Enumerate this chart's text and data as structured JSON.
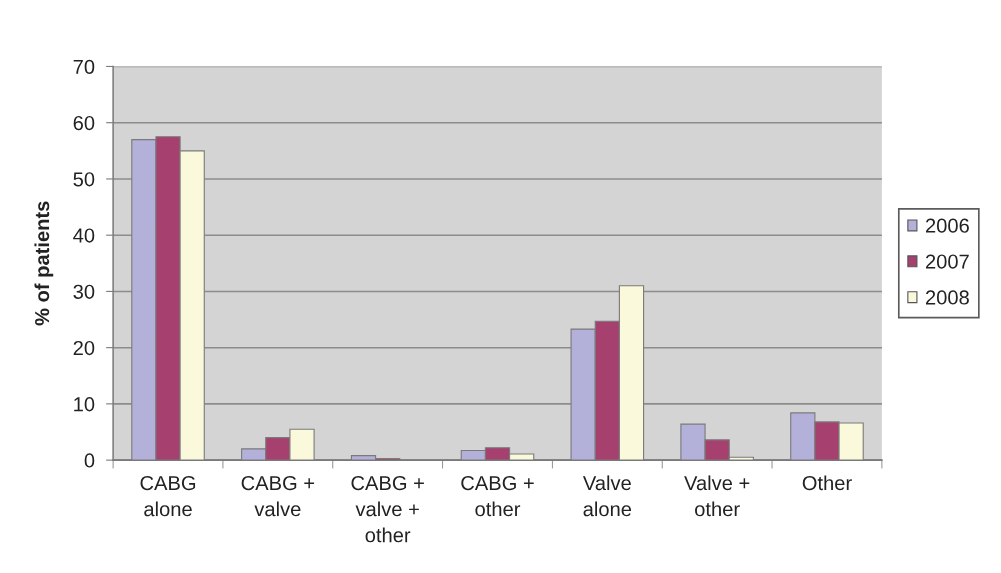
{
  "chart_data": {
    "type": "bar",
    "ylabel": "% of patients",
    "categories": [
      "CABG\nalone",
      "CABG +\nvalve",
      "CABG +\nvalve +\nother",
      "CABG +\nother",
      "Valve\nalone",
      "Valve +\nother",
      "Other"
    ],
    "series": [
      {
        "name": "2006",
        "color": "#b3b0d9",
        "values": [
          57,
          2,
          0.8,
          1.7,
          23.3,
          6.4,
          8.4
        ]
      },
      {
        "name": "2007",
        "color": "#a6406e",
        "values": [
          57.5,
          4,
          0.3,
          2.2,
          24.7,
          3.6,
          6.8
        ]
      },
      {
        "name": "2008",
        "color": "#fbf9dc",
        "values": [
          55,
          5.5,
          null,
          1.1,
          31,
          0.5,
          6.6
        ]
      }
    ],
    "ylim": [
      0,
      70
    ],
    "yticks": [
      0,
      10,
      20,
      30,
      40,
      50,
      60,
      70
    ],
    "grid": "y",
    "legend": "right"
  }
}
